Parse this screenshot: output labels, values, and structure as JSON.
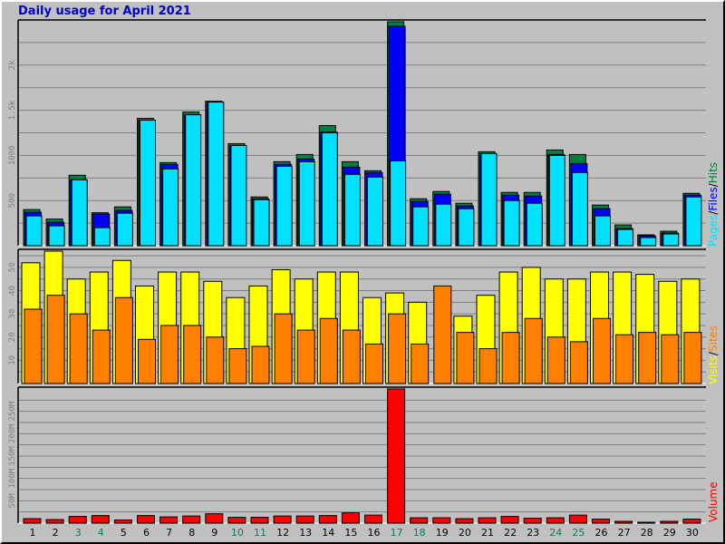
{
  "title": "Daily usage for April 2021",
  "colors": {
    "hits": "#008040",
    "files": "#0000ff",
    "pages": "#00e0ff",
    "visits": "#ffff00",
    "sites": "#ff8000",
    "volume": "#ff0000",
    "weekday_label": "#000000",
    "weekend_label": "#00805c",
    "background": "#c0c0c0"
  },
  "legend": {
    "top": [
      "Pages",
      "/",
      "Files",
      "/",
      "Hits"
    ],
    "middle": [
      "Visits",
      "/",
      "Sites"
    ],
    "bottom": [
      "Volume"
    ]
  },
  "chart_data": [
    {
      "type": "bar",
      "categories": [
        "1",
        "2",
        "3",
        "4",
        "5",
        "6",
        "7",
        "8",
        "9",
        "10",
        "11",
        "12",
        "13",
        "14",
        "15",
        "16",
        "17",
        "18",
        "19",
        "20",
        "21",
        "22",
        "23",
        "24",
        "25",
        "26",
        "27",
        "28",
        "29",
        "30"
      ],
      "weekend_days": [
        "3",
        "4",
        "10",
        "11",
        "17",
        "18",
        "24",
        "25"
      ],
      "series": [
        {
          "name": "Hits",
          "values": [
            400,
            295,
            780,
            365,
            430,
            1410,
            920,
            1480,
            1600,
            1130,
            540,
            930,
            1010,
            1330,
            930,
            830,
            2480,
            520,
            600,
            470,
            1040,
            590,
            590,
            1060,
            1010,
            450,
            230,
            120,
            160,
            580
          ]
        },
        {
          "name": "Files",
          "values": [
            370,
            260,
            730,
            350,
            390,
            1390,
            900,
            1450,
            1590,
            1110,
            520,
            900,
            960,
            1260,
            870,
            810,
            2430,
            490,
            570,
            440,
            1020,
            560,
            550,
            1010,
            910,
            410,
            190,
            110,
            140,
            560
          ]
        },
        {
          "name": "Pages",
          "values": [
            330,
            220,
            730,
            200,
            360,
            1390,
            850,
            1450,
            1590,
            1110,
            510,
            880,
            930,
            1250,
            790,
            760,
            940,
            430,
            460,
            410,
            1020,
            500,
            470,
            1000,
            810,
            330,
            180,
            90,
            130,
            540
          ]
        }
      ],
      "yticks": [
        "500",
        "1000",
        "1.5k",
        "2k"
      ],
      "ylim": [
        0,
        2480
      ]
    },
    {
      "type": "bar",
      "categories": [
        "1",
        "2",
        "3",
        "4",
        "5",
        "6",
        "7",
        "8",
        "9",
        "10",
        "11",
        "12",
        "13",
        "14",
        "15",
        "16",
        "17",
        "18",
        "19",
        "20",
        "21",
        "22",
        "23",
        "24",
        "25",
        "26",
        "27",
        "28",
        "29",
        "30"
      ],
      "series": [
        {
          "name": "Visits",
          "values": [
            52,
            57,
            45,
            48,
            53,
            42,
            48,
            48,
            44,
            37,
            42,
            49,
            45,
            48,
            48,
            37,
            39,
            35,
            0,
            29,
            38,
            48,
            50,
            45,
            45,
            48,
            48,
            47,
            44,
            45
          ]
        },
        {
          "name": "Sites",
          "values": [
            32,
            38,
            30,
            23,
            37,
            19,
            25,
            25,
            20,
            15,
            16,
            30,
            23,
            28,
            23,
            17,
            30,
            17,
            42,
            22,
            15,
            22,
            28,
            20,
            18,
            28,
            21,
            22,
            21,
            22
          ]
        }
      ],
      "yticks": [
        "10",
        "20",
        "30",
        "40",
        "50"
      ],
      "ylim": [
        0,
        57
      ]
    },
    {
      "type": "bar",
      "categories": [
        "1",
        "2",
        "3",
        "4",
        "5",
        "6",
        "7",
        "8",
        "9",
        "10",
        "11",
        "12",
        "13",
        "14",
        "15",
        "16",
        "17",
        "18",
        "19",
        "20",
        "21",
        "22",
        "23",
        "24",
        "25",
        "26",
        "27",
        "28",
        "29",
        "30"
      ],
      "series": [
        {
          "name": "Volume",
          "values": [
            10,
            8,
            15,
            17,
            7,
            17,
            14,
            16,
            21,
            13,
            13,
            16,
            16,
            17,
            23,
            18,
            300,
            12,
            12,
            10,
            12,
            15,
            11,
            12,
            18,
            9,
            4,
            2,
            4,
            9
          ]
        }
      ],
      "yticks": [
        "50M",
        "100M",
        "150M",
        "200M",
        "250M"
      ],
      "ylim": [
        0,
        300
      ]
    }
  ]
}
